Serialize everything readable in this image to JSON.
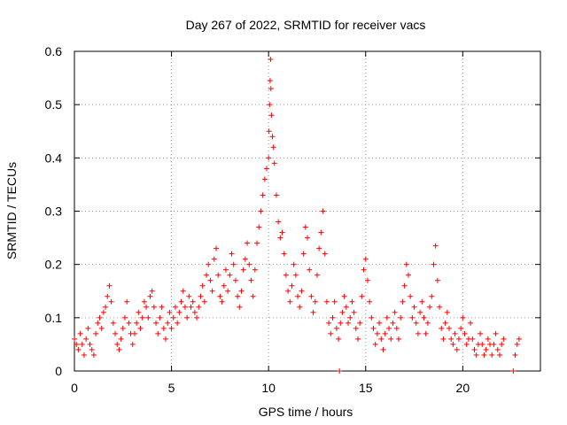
{
  "chart_data": {
    "type": "scatter",
    "title": "Day 267 of 2022, SRMTID for receiver vacs",
    "xlabel": "GPS time / hours",
    "ylabel": "SRMTID / TECUs",
    "xlim": [
      0,
      24
    ],
    "ylim": [
      0,
      0.6
    ],
    "x_ticks": [
      0,
      5,
      10,
      15,
      20
    ],
    "y_ticks": [
      0,
      0.1,
      0.2,
      0.3,
      0.4,
      0.5,
      0.6
    ],
    "x_tick_labels": [
      "0",
      "5",
      "10",
      "15",
      "20"
    ],
    "y_tick_labels": [
      "0",
      "0.1",
      "0.2",
      "0.3",
      "0.4",
      "0.5",
      "0.6"
    ],
    "grid": true,
    "marker": "+",
    "color": "#ff0000",
    "series": [
      {
        "name": "SRMTID",
        "points": [
          [
            0.0,
            0.06
          ],
          [
            0.1,
            0.05
          ],
          [
            0.2,
            0.04
          ],
          [
            0.3,
            0.07
          ],
          [
            0.4,
            0.05
          ],
          [
            0.5,
            0.03
          ],
          [
            0.6,
            0.06
          ],
          [
            0.7,
            0.08
          ],
          [
            0.8,
            0.05
          ],
          [
            0.9,
            0.04
          ],
          [
            1.0,
            0.03
          ],
          [
            1.1,
            0.07
          ],
          [
            1.2,
            0.09
          ],
          [
            1.3,
            0.1
          ],
          [
            1.4,
            0.08
          ],
          [
            1.5,
            0.11
          ],
          [
            1.6,
            0.12
          ],
          [
            1.7,
            0.14
          ],
          [
            1.8,
            0.16
          ],
          [
            1.9,
            0.13
          ],
          [
            2.0,
            0.09
          ],
          [
            2.1,
            0.07
          ],
          [
            2.2,
            0.05
          ],
          [
            2.3,
            0.04
          ],
          [
            2.4,
            0.06
          ],
          [
            2.5,
            0.08
          ],
          [
            2.6,
            0.1
          ],
          [
            2.7,
            0.13
          ],
          [
            2.8,
            0.09
          ],
          [
            2.9,
            0.07
          ],
          [
            3.0,
            0.05
          ],
          [
            3.1,
            0.07
          ],
          [
            3.2,
            0.09
          ],
          [
            3.3,
            0.11
          ],
          [
            3.4,
            0.08
          ],
          [
            3.5,
            0.1
          ],
          [
            3.6,
            0.13
          ],
          [
            3.7,
            0.12
          ],
          [
            3.8,
            0.1
          ],
          [
            3.9,
            0.14
          ],
          [
            4.0,
            0.15
          ],
          [
            4.1,
            0.12
          ],
          [
            4.2,
            0.09
          ],
          [
            4.3,
            0.07
          ],
          [
            4.4,
            0.1
          ],
          [
            4.5,
            0.12
          ],
          [
            4.6,
            0.08
          ],
          [
            4.7,
            0.06
          ],
          [
            4.8,
            0.09
          ],
          [
            4.9,
            0.11
          ],
          [
            5.0,
            0.08
          ],
          [
            5.1,
            0.1
          ],
          [
            5.2,
            0.12
          ],
          [
            5.3,
            0.09
          ],
          [
            5.4,
            0.11
          ],
          [
            5.5,
            0.13
          ],
          [
            5.6,
            0.15
          ],
          [
            5.7,
            0.12
          ],
          [
            5.8,
            0.1
          ],
          [
            5.9,
            0.14
          ],
          [
            6.0,
            0.12
          ],
          [
            6.1,
            0.13
          ],
          [
            6.2,
            0.11
          ],
          [
            6.3,
            0.1
          ],
          [
            6.4,
            0.12
          ],
          [
            6.5,
            0.14
          ],
          [
            6.6,
            0.16
          ],
          [
            6.7,
            0.13
          ],
          [
            6.8,
            0.18
          ],
          [
            6.9,
            0.2
          ],
          [
            7.0,
            0.17
          ],
          [
            7.1,
            0.15
          ],
          [
            7.2,
            0.21
          ],
          [
            7.3,
            0.23
          ],
          [
            7.4,
            0.18
          ],
          [
            7.5,
            0.14
          ],
          [
            7.6,
            0.13
          ],
          [
            7.7,
            0.16
          ],
          [
            7.8,
            0.19
          ],
          [
            7.9,
            0.15
          ],
          [
            8.0,
            0.18
          ],
          [
            8.1,
            0.22
          ],
          [
            8.2,
            0.2
          ],
          [
            8.3,
            0.17
          ],
          [
            8.4,
            0.14
          ],
          [
            8.5,
            0.12
          ],
          [
            8.6,
            0.15
          ],
          [
            8.7,
            0.19
          ],
          [
            8.8,
            0.21
          ],
          [
            8.9,
            0.24
          ],
          [
            9.0,
            0.2
          ],
          [
            9.1,
            0.17
          ],
          [
            9.2,
            0.14
          ],
          [
            9.3,
            0.19
          ],
          [
            9.4,
            0.24
          ],
          [
            9.5,
            0.27
          ],
          [
            9.6,
            0.3
          ],
          [
            9.7,
            0.33
          ],
          [
            9.8,
            0.36
          ],
          [
            9.9,
            0.38
          ],
          [
            10.0,
            0.4
          ],
          [
            10.02,
            0.45
          ],
          [
            10.05,
            0.5
          ],
          [
            10.08,
            0.545
          ],
          [
            10.1,
            0.585
          ],
          [
            10.12,
            0.53
          ],
          [
            10.15,
            0.48
          ],
          [
            10.2,
            0.44
          ],
          [
            10.25,
            0.42
          ],
          [
            10.3,
            0.39
          ],
          [
            10.4,
            0.33
          ],
          [
            10.5,
            0.28
          ],
          [
            10.6,
            0.25
          ],
          [
            10.7,
            0.26
          ],
          [
            10.8,
            0.22
          ],
          [
            10.9,
            0.18
          ],
          [
            11.0,
            0.15
          ],
          [
            11.1,
            0.13
          ],
          [
            11.2,
            0.16
          ],
          [
            11.3,
            0.2
          ],
          [
            11.4,
            0.18
          ],
          [
            11.5,
            0.14
          ],
          [
            11.6,
            0.12
          ],
          [
            11.7,
            0.15
          ],
          [
            11.8,
            0.22
          ],
          [
            11.9,
            0.27
          ],
          [
            12.0,
            0.25
          ],
          [
            12.1,
            0.19
          ],
          [
            12.2,
            0.14
          ],
          [
            12.3,
            0.11
          ],
          [
            12.4,
            0.13
          ],
          [
            12.5,
            0.18
          ],
          [
            12.6,
            0.23
          ],
          [
            12.7,
            0.26
          ],
          [
            12.8,
            0.3
          ],
          [
            12.9,
            0.22
          ],
          [
            13.0,
            0.13
          ],
          [
            13.1,
            0.09
          ],
          [
            13.2,
            0.07
          ],
          [
            13.3,
            0.1
          ],
          [
            13.4,
            0.13
          ],
          [
            13.5,
            0.08
          ],
          [
            13.6,
            0.06
          ],
          [
            13.65,
            0.0
          ],
          [
            13.7,
            0.09
          ],
          [
            13.8,
            0.11
          ],
          [
            13.9,
            0.14
          ],
          [
            14.0,
            0.12
          ],
          [
            14.1,
            0.09
          ],
          [
            14.2,
            0.1
          ],
          [
            14.3,
            0.13
          ],
          [
            14.4,
            0.11
          ],
          [
            14.5,
            0.08
          ],
          [
            14.6,
            0.06
          ],
          [
            14.7,
            0.09
          ],
          [
            14.8,
            0.14
          ],
          [
            14.9,
            0.19
          ],
          [
            15.0,
            0.21
          ],
          [
            15.1,
            0.17
          ],
          [
            15.2,
            0.13
          ],
          [
            15.3,
            0.1
          ],
          [
            15.4,
            0.08
          ],
          [
            15.5,
            0.05
          ],
          [
            15.6,
            0.07
          ],
          [
            15.7,
            0.09
          ],
          [
            15.8,
            0.06
          ],
          [
            15.9,
            0.04
          ],
          [
            16.0,
            0.07
          ],
          [
            16.1,
            0.1
          ],
          [
            16.2,
            0.08
          ],
          [
            16.3,
            0.06
          ],
          [
            16.4,
            0.09
          ],
          [
            16.5,
            0.11
          ],
          [
            16.6,
            0.08
          ],
          [
            16.7,
            0.06
          ],
          [
            16.8,
            0.1
          ],
          [
            16.9,
            0.13
          ],
          [
            17.0,
            0.16
          ],
          [
            17.1,
            0.2
          ],
          [
            17.2,
            0.18
          ],
          [
            17.3,
            0.14
          ],
          [
            17.4,
            0.1
          ],
          [
            17.5,
            0.12
          ],
          [
            17.6,
            0.09
          ],
          [
            17.7,
            0.07
          ],
          [
            17.8,
            0.11
          ],
          [
            17.9,
            0.13
          ],
          [
            18.0,
            0.1
          ],
          [
            18.1,
            0.07
          ],
          [
            18.2,
            0.09
          ],
          [
            18.3,
            0.12
          ],
          [
            18.4,
            0.14
          ],
          [
            18.5,
            0.2
          ],
          [
            18.6,
            0.235
          ],
          [
            18.7,
            0.17
          ],
          [
            18.8,
            0.12
          ],
          [
            18.9,
            0.08
          ],
          [
            19.0,
            0.06
          ],
          [
            19.1,
            0.09
          ],
          [
            19.2,
            0.11
          ],
          [
            19.3,
            0.08
          ],
          [
            19.4,
            0.06
          ],
          [
            19.5,
            0.05
          ],
          [
            19.6,
            0.07
          ],
          [
            19.7,
            0.04
          ],
          [
            19.8,
            0.06
          ],
          [
            19.9,
            0.08
          ],
          [
            20.0,
            0.1
          ],
          [
            20.1,
            0.07
          ],
          [
            20.2,
            0.05
          ],
          [
            20.3,
            0.06
          ],
          [
            20.4,
            0.09
          ],
          [
            20.5,
            0.06
          ],
          [
            20.6,
            0.04
          ],
          [
            20.7,
            0.03
          ],
          [
            20.8,
            0.05
          ],
          [
            20.9,
            0.07
          ],
          [
            21.0,
            0.05
          ],
          [
            21.1,
            0.03
          ],
          [
            21.2,
            0.04
          ],
          [
            21.3,
            0.06
          ],
          [
            21.4,
            0.05
          ],
          [
            21.5,
            0.03
          ],
          [
            21.6,
            0.05
          ],
          [
            21.7,
            0.07
          ],
          [
            21.8,
            0.04
          ],
          [
            21.9,
            0.03
          ],
          [
            22.0,
            0.05
          ],
          [
            22.1,
            0.06
          ],
          [
            22.6,
            0.0
          ],
          [
            22.7,
            0.03
          ],
          [
            22.8,
            0.05
          ],
          [
            22.9,
            0.06
          ]
        ]
      }
    ]
  }
}
